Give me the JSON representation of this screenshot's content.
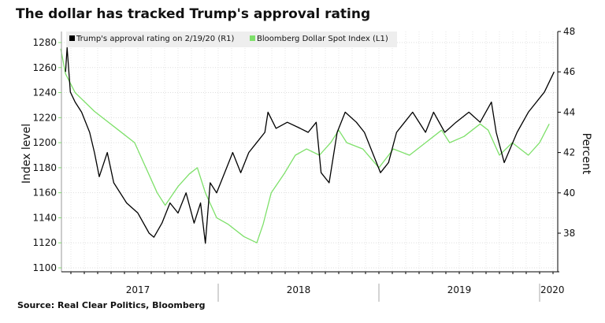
{
  "chart_data": {
    "type": "line",
    "title": "The dollar has tracked Trump's approval rating",
    "source": "Source: Real Clear Politics, Bloomberg",
    "ylabel_left": "Index level",
    "ylabel_right": "Percent",
    "ylim_left": [
      1100,
      1280
    ],
    "ylim_right": [
      37,
      48
    ],
    "yticks_left": [
      "1100",
      "1120",
      "1140",
      "1160",
      "1180",
      "1200",
      "1220",
      "1240",
      "1260",
      "1280"
    ],
    "yticks_right": [
      "38",
      "40",
      "42",
      "44",
      "46",
      "48"
    ],
    "xticks": [
      {
        "label": "2017",
        "at": 2017.5
      },
      {
        "label": "2018",
        "at": 2018.5
      },
      {
        "label": "2019",
        "at": 2019.5
      },
      {
        "label": "2020",
        "at": 2020.08
      }
    ],
    "grid": true,
    "legend_position": "top",
    "series": [
      {
        "name": "Trump's approval rating on 2/19/20 (R1)",
        "axis": "right",
        "color": "#000000",
        "x": [
          2017.05,
          2017.06,
          2017.08,
          2017.11,
          2017.15,
          2017.2,
          2017.23,
          2017.26,
          2017.31,
          2017.35,
          2017.43,
          2017.5,
          2017.57,
          2017.6,
          2017.65,
          2017.7,
          2017.75,
          2017.8,
          2017.85,
          2017.89,
          2017.92,
          2017.95,
          2017.99,
          2018.04,
          2018.09,
          2018.14,
          2018.19,
          2018.24,
          2018.29,
          2018.31,
          2018.36,
          2018.43,
          2018.51,
          2018.56,
          2018.61,
          2018.64,
          2018.69,
          2018.74,
          2018.79,
          2018.86,
          2018.91,
          2018.96,
          2019.01,
          2019.06,
          2019.11,
          2019.16,
          2019.21,
          2019.29,
          2019.34,
          2019.41,
          2019.48,
          2019.56,
          2019.63,
          2019.7,
          2019.73,
          2019.78,
          2019.86,
          2019.93,
          2019.98,
          2020.03,
          2020.09
        ],
        "values": [
          46,
          47.2,
          45,
          44.5,
          44,
          43,
          42,
          40.8,
          42,
          40.5,
          39.5,
          39,
          38,
          37.8,
          38.5,
          39.5,
          39,
          40,
          38.5,
          39.5,
          37.5,
          40.5,
          40,
          41,
          42,
          41,
          42,
          42.5,
          43,
          44,
          43.2,
          43.5,
          43.2,
          43,
          43.5,
          41,
          40.5,
          43,
          44,
          43.5,
          43,
          42,
          41,
          41.5,
          43,
          43.5,
          44,
          43,
          44,
          43,
          43.5,
          44,
          43.5,
          44.5,
          43,
          41.5,
          43,
          44,
          44.5,
          45,
          46
        ]
      },
      {
        "name": "Bloomberg Dollar Spot Index (L1)",
        "axis": "left",
        "color": "#7ee06a",
        "x": [
          2017.02,
          2017.05,
          2017.11,
          2017.23,
          2017.38,
          2017.48,
          2017.55,
          2017.62,
          2017.67,
          2017.75,
          2017.82,
          2017.87,
          2017.92,
          2017.99,
          2018.06,
          2018.16,
          2018.24,
          2018.28,
          2018.33,
          2018.41,
          2018.48,
          2018.55,
          2018.63,
          2018.7,
          2018.75,
          2018.8,
          2018.9,
          2019.0,
          2019.09,
          2019.19,
          2019.29,
          2019.39,
          2019.44,
          2019.53,
          2019.63,
          2019.68,
          2019.75,
          2019.83,
          2019.88,
          2019.93,
          2020.0,
          2020.06
        ],
        "values": [
          1275,
          1255,
          1240,
          1225,
          1210,
          1200,
          1180,
          1160,
          1150,
          1165,
          1175,
          1180,
          1160,
          1140,
          1135,
          1125,
          1120,
          1135,
          1160,
          1175,
          1190,
          1195,
          1190,
          1200,
          1210,
          1200,
          1195,
          1180,
          1195,
          1190,
          1200,
          1210,
          1200,
          1205,
          1215,
          1210,
          1190,
          1200,
          1195,
          1190,
          1200,
          1215
        ]
      }
    ]
  }
}
